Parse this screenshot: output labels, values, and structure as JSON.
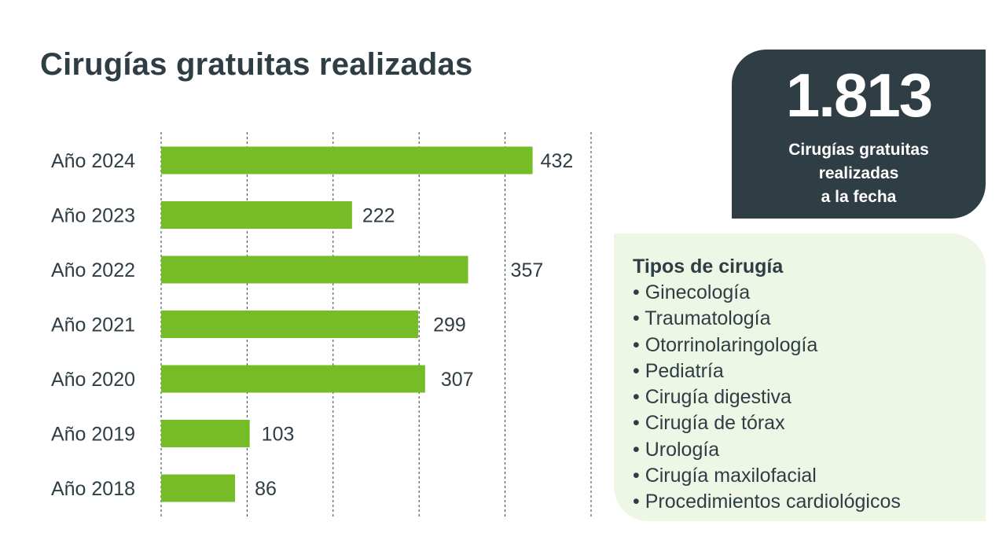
{
  "title": "Cirugías gratuitas realizadas",
  "colors": {
    "bar": "#76bc26",
    "dark": "#2f3d45",
    "panel": "#eef6e6"
  },
  "chart_data": {
    "type": "bar",
    "orientation": "horizontal",
    "categories": [
      "Año 2024",
      "Año 2023",
      "Año 2022",
      "Año 2021",
      "Año 2020",
      "Año 2019",
      "Año 2018"
    ],
    "values": [
      432,
      222,
      357,
      299,
      307,
      103,
      86
    ],
    "xlim": [
      0,
      500
    ],
    "grid": "vertical dashed",
    "bar_color": "#76bc26"
  },
  "total": {
    "value": "1.813",
    "caption": [
      "Cirugías gratuitas",
      "realizadas",
      "a la fecha"
    ]
  },
  "types": {
    "title": "Tipos de cirugía",
    "items": [
      "Ginecología",
      "Traumatología",
      "Otorrinolaringología",
      "Pediatría",
      "Cirugía digestiva",
      "Cirugía de tórax",
      "Urología",
      "Cirugía maxilofacial",
      "Procedimientos cardiológicos"
    ]
  }
}
